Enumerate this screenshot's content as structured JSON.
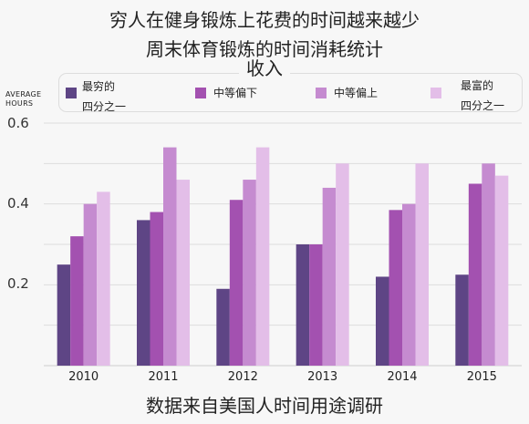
{
  "chart_data": {
    "type": "bar",
    "title": "穷人在健身锻炼上花费的时间越来越少",
    "subtitle": "周末体育锻炼的时间消耗统计",
    "legend_title": "收入",
    "ylabel_line1": "AVERAGE",
    "ylabel_line2": "HOURS",
    "source": "数据来自美国人时间用途调研",
    "ylim": [
      0,
      0.6
    ],
    "yticks": [
      "0.2",
      "0.4",
      "0.6"
    ],
    "categories": [
      "2010",
      "2011",
      "2012",
      "2013",
      "2014",
      "2015"
    ],
    "series": [
      {
        "name": "最穷的\n四分之一",
        "color": "#5e4585",
        "values": [
          0.25,
          0.36,
          0.19,
          0.3,
          0.22,
          0.225
        ]
      },
      {
        "name": "中等偏下",
        "color": "#a351b0",
        "values": [
          0.32,
          0.38,
          0.41,
          0.3,
          0.385,
          0.45
        ]
      },
      {
        "name": "中等偏上",
        "color": "#c58bd0",
        "values": [
          0.4,
          0.54,
          0.46,
          0.44,
          0.4,
          0.5
        ]
      },
      {
        "name": "最富的\n四分之一",
        "color": "#e3bee8",
        "values": [
          0.43,
          0.46,
          0.54,
          0.5,
          0.5,
          0.47
        ]
      }
    ],
    "grid": true,
    "legend_position": "top"
  }
}
